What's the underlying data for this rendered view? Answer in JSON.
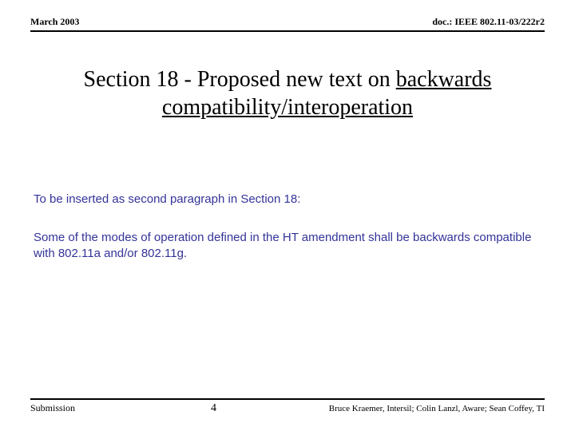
{
  "header": {
    "left": "March 2003",
    "right": "doc.: IEEE 802.11-03/222r2"
  },
  "title": {
    "prefix": "Section 18 - Proposed new text on ",
    "underlined": "backwards compatibility/interoperation"
  },
  "body": {
    "intro": "To be inserted as second paragraph in Section 18:",
    "paragraph": "Some of the modes of operation defined in the HT amendment shall be backwards compatible with 802.11a and/or 802.11g."
  },
  "footer": {
    "submission": "Submission",
    "page": "4",
    "authors": "Bruce Kraemer, Intersil; Colin Lanzl, Aware; Sean Coffey, TI"
  },
  "colors": {
    "body_text": "#333399",
    "rule": "#000000",
    "background": "#ffffff"
  },
  "fonts": {
    "serif": "Times New Roman",
    "sans": "Verdana",
    "title_size_pt": 28,
    "body_size_pt": 15,
    "header_size_pt": 12,
    "footer_size_pt": 12
  }
}
